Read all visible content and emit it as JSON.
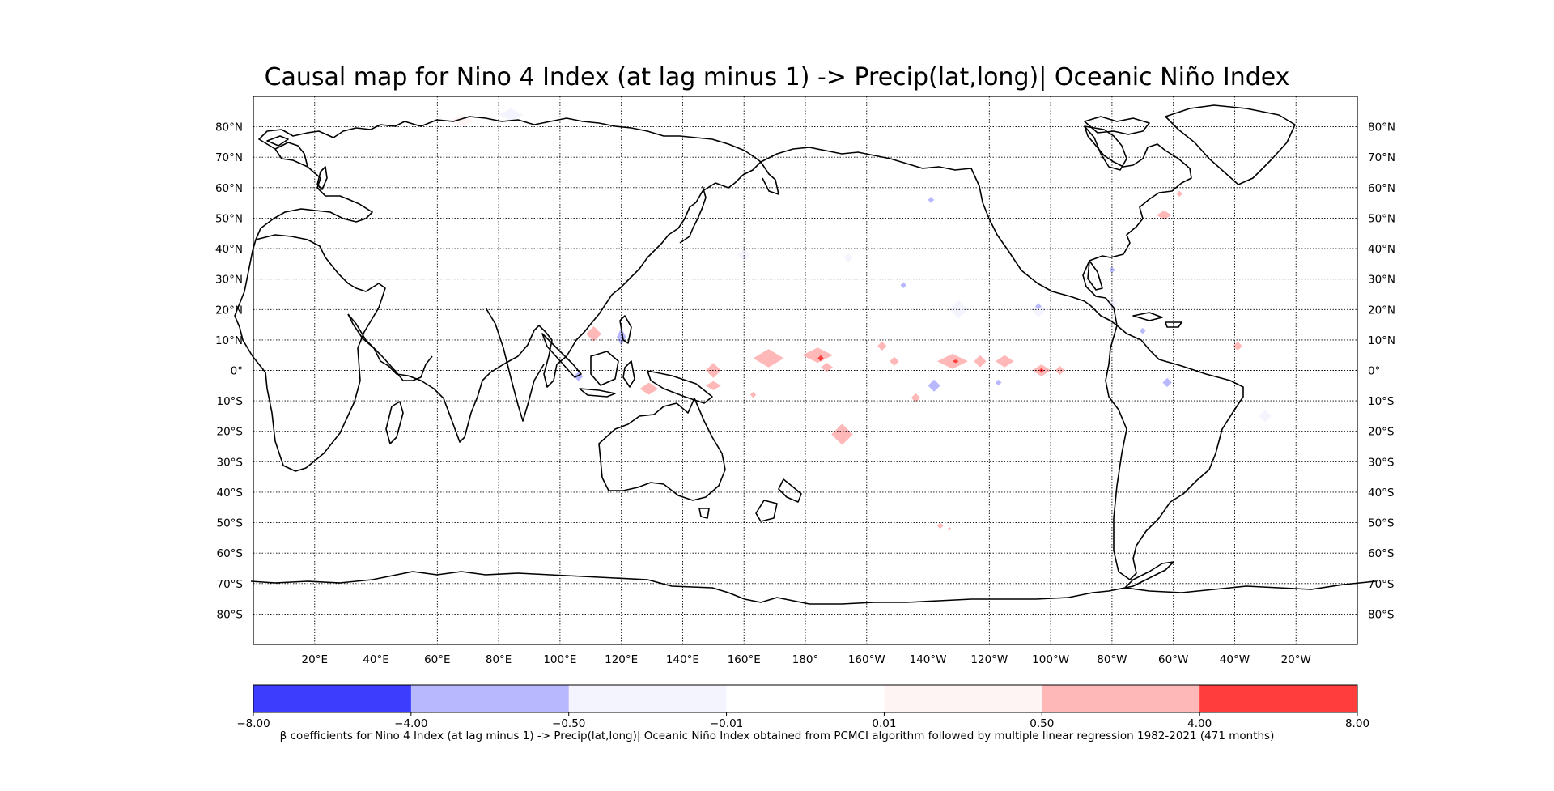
{
  "title": "Causal map for Nino 4 Index (at lag minus 1) -> Precip(lat,long)| Oceanic Niño Index",
  "map": {
    "projection": "PlateCarree",
    "central_longitude": 180,
    "lon_range": [
      0,
      360
    ],
    "lat_range": [
      -90,
      90
    ],
    "gridlines": "dotted",
    "coastlines": true,
    "lat_labels": [
      "80°N",
      "70°N",
      "60°N",
      "50°N",
      "40°N",
      "30°N",
      "20°N",
      "10°N",
      "0°",
      "10°S",
      "20°S",
      "30°S",
      "40°S",
      "50°S",
      "60°S",
      "70°S",
      "80°S"
    ],
    "lat_values": [
      80,
      70,
      60,
      50,
      40,
      30,
      20,
      10,
      0,
      -10,
      -20,
      -30,
      -40,
      -50,
      -60,
      -70,
      -80
    ],
    "lon_labels": [
      "20°E",
      "40°E",
      "60°E",
      "80°E",
      "100°E",
      "120°E",
      "140°E",
      "160°E",
      "180°",
      "160°W",
      "140°W",
      "120°W",
      "100°W",
      "80°W",
      "60°W",
      "40°W",
      "20°W"
    ],
    "lon_values": [
      20,
      40,
      60,
      80,
      100,
      120,
      140,
      160,
      180,
      200,
      220,
      240,
      260,
      280,
      300,
      320,
      340
    ]
  },
  "colorbar": {
    "ticks": [
      "−8.00",
      "−4.00",
      "−0.50",
      "−0.01",
      "0.01",
      "0.50",
      "4.00",
      "8.00"
    ],
    "colors": [
      "#3d3dfe",
      "#b8b8ff",
      "#f4f4ff",
      "#ffffff",
      "#fff4f4",
      "#ffb8b8",
      "#ff3d3d"
    ],
    "caption": "β coefficients for Nino 4 Index (at lag minus 1) -> Precip(lat,long)| Oceanic Niño Index obtained from PCMCI algorithm followed by multiple linear regression 1982-2021 (471 months)"
  },
  "blobs": [
    {
      "lon": 111,
      "lat": 12,
      "rx": 2.5,
      "ry": 2.5,
      "color": "#ffb8b8"
    },
    {
      "lon": 120,
      "lat": 11,
      "rx": 1.5,
      "ry": 3,
      "color": "#b8b8ff"
    },
    {
      "lon": 106,
      "lat": -2,
      "rx": 1.5,
      "ry": 1.5,
      "color": "#b8b8ff"
    },
    {
      "lon": 129,
      "lat": -6,
      "rx": 3,
      "ry": 2,
      "color": "#ffb8b8"
    },
    {
      "lon": 150,
      "lat": 0,
      "rx": 2.5,
      "ry": 2.5,
      "color": "#ffb8b8"
    },
    {
      "lon": 150,
      "lat": -5,
      "rx": 2.5,
      "ry": 1.5,
      "color": "#ffb8b8"
    },
    {
      "lon": 168,
      "lat": 4,
      "rx": 5,
      "ry": 3,
      "color": "#ffb8b8"
    },
    {
      "lon": 184,
      "lat": 5,
      "rx": 5,
      "ry": 2.5,
      "color": "#ffb8b8"
    },
    {
      "lon": 185,
      "lat": 4,
      "rx": 1,
      "ry": 1,
      "color": "#ff3d3d"
    },
    {
      "lon": 187,
      "lat": 1,
      "rx": 2,
      "ry": 1.5,
      "color": "#ffb8b8"
    },
    {
      "lon": 192,
      "lat": -21,
      "rx": 3.5,
      "ry": 3.5,
      "color": "#ffb8b8"
    },
    {
      "lon": 209,
      "lat": 3,
      "rx": 1.5,
      "ry": 1.5,
      "color": "#ffb8b8"
    },
    {
      "lon": 205,
      "lat": 8,
      "rx": 1.5,
      "ry": 1.5,
      "color": "#ffb8b8"
    },
    {
      "lon": 216,
      "lat": -9,
      "rx": 1.5,
      "ry": 1.5,
      "color": "#ffb8b8"
    },
    {
      "lon": 222,
      "lat": -5,
      "rx": 2,
      "ry": 2,
      "color": "#b8b8ff"
    },
    {
      "lon": 228,
      "lat": 3,
      "rx": 5,
      "ry": 2.5,
      "color": "#ffb8b8"
    },
    {
      "lon": 229,
      "lat": 3,
      "rx": 1,
      "ry": 0.6,
      "color": "#ff3d3d"
    },
    {
      "lon": 237,
      "lat": 3,
      "rx": 2,
      "ry": 2,
      "color": "#ffb8b8"
    },
    {
      "lon": 245,
      "lat": 3,
      "rx": 3,
      "ry": 2,
      "color": "#ffb8b8"
    },
    {
      "lon": 257,
      "lat": 0,
      "rx": 3,
      "ry": 2,
      "color": "#ffb8b8"
    },
    {
      "lon": 257,
      "lat": 0,
      "rx": 0.8,
      "ry": 0.8,
      "color": "#ff3d3d"
    },
    {
      "lon": 263,
      "lat": 0,
      "rx": 1.5,
      "ry": 1.5,
      "color": "#ffb8b8"
    },
    {
      "lon": 243,
      "lat": -4,
      "rx": 1,
      "ry": 1,
      "color": "#b8b8ff"
    },
    {
      "lon": 256,
      "lat": 20,
      "rx": 2.5,
      "ry": 2.5,
      "color": "#f4f4ff"
    },
    {
      "lon": 280,
      "lat": 33,
      "rx": 1,
      "ry": 1,
      "color": "#b8b8ff"
    },
    {
      "lon": 256,
      "lat": 21,
      "rx": 1,
      "ry": 1,
      "color": "#b8b8ff"
    },
    {
      "lon": 290,
      "lat": 13,
      "rx": 1,
      "ry": 1,
      "color": "#b8b8ff"
    },
    {
      "lon": 298,
      "lat": -4,
      "rx": 1.5,
      "ry": 1.5,
      "color": "#b8b8ff"
    },
    {
      "lon": 321,
      "lat": 8,
      "rx": 1.5,
      "ry": 1.5,
      "color": "#ffb8b8"
    },
    {
      "lon": 297,
      "lat": 51,
      "rx": 2.5,
      "ry": 1.5,
      "color": "#ffb8b8"
    },
    {
      "lon": 302,
      "lat": 58,
      "rx": 1,
      "ry": 1,
      "color": "#ffb8b8"
    },
    {
      "lon": 221,
      "lat": 56,
      "rx": 1,
      "ry": 1,
      "color": "#b8b8ff"
    },
    {
      "lon": 212,
      "lat": 28,
      "rx": 1,
      "ry": 1,
      "color": "#b8b8ff"
    },
    {
      "lon": 163,
      "lat": -8,
      "rx": 1,
      "ry": 1,
      "color": "#ffb8b8"
    },
    {
      "lon": 224,
      "lat": -51,
      "rx": 1,
      "ry": 1,
      "color": "#ffb8b8"
    },
    {
      "lon": 227,
      "lat": -52,
      "rx": 0.6,
      "ry": 0.6,
      "color": "#ffb8b8"
    },
    {
      "lon": 194,
      "lat": 37,
      "rx": 1.5,
      "ry": 1.5,
      "color": "#f4f4ff"
    },
    {
      "lon": 160,
      "lat": 38,
      "rx": 2,
      "ry": 2,
      "color": "#f4f4ff"
    },
    {
      "lon": 230,
      "lat": 20,
      "rx": 3,
      "ry": 3,
      "color": "#f4f4ff"
    },
    {
      "lon": 330,
      "lat": -15,
      "rx": 2,
      "ry": 2,
      "color": "#f4f4ff"
    },
    {
      "lon": 280,
      "lat": 22,
      "rx": 2,
      "ry": 2,
      "color": "#f4f4ff"
    },
    {
      "lon": 68,
      "lat": 82,
      "rx": 4,
      "ry": 2,
      "color": "#fff4f4"
    },
    {
      "lon": 84,
      "lat": 84,
      "rx": 4,
      "ry": 2,
      "color": "#f4f4ff"
    }
  ]
}
